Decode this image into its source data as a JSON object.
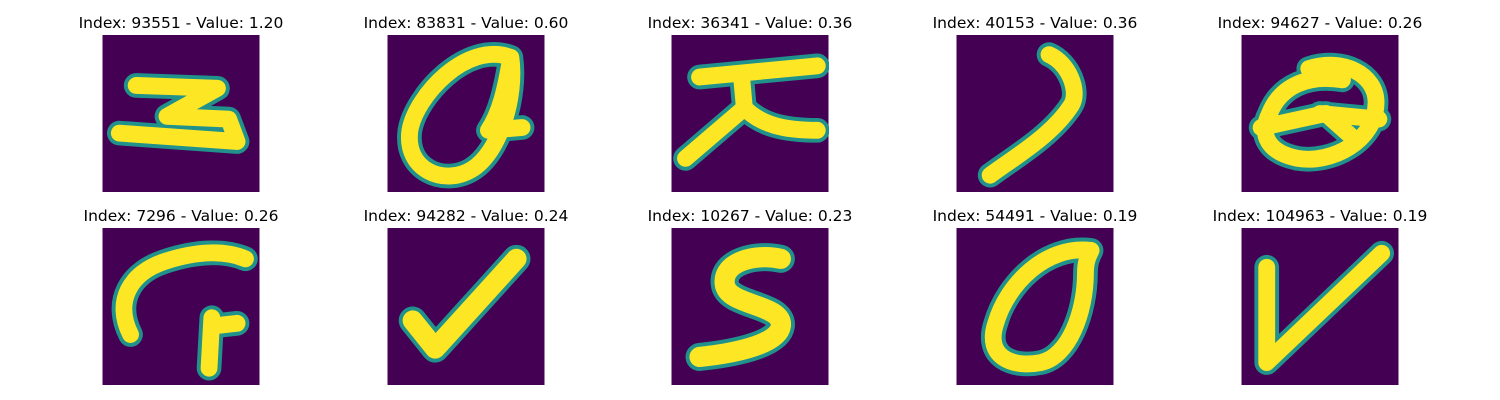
{
  "colors": {
    "background": "#440154",
    "mid": "#21918c",
    "stroke": "#fde725"
  },
  "chart_data": {
    "type": "image_grid",
    "colormap": "viridis",
    "panels": [
      {
        "title": "Index: 93551 - Value: 1.20",
        "glyph": "handwritten-3-rotated"
      },
      {
        "title": "Index: 83831 - Value: 0.60",
        "glyph": "handwritten-q"
      },
      {
        "title": "Index: 36341 - Value: 0.36",
        "glyph": "handwritten-x-bar"
      },
      {
        "title": "Index: 40153 - Value: 0.36",
        "glyph": "handwritten-curve"
      },
      {
        "title": "Index: 94627 - Value: 0.26",
        "glyph": "handwritten-theta"
      },
      {
        "title": "Index: 7296 - Value: 0.26",
        "glyph": "handwritten-arc-stroke"
      },
      {
        "title": "Index: 94282 - Value: 0.24",
        "glyph": "handwritten-check"
      },
      {
        "title": "Index: 10267 - Value: 0.23",
        "glyph": "handwritten-s"
      },
      {
        "title": "Index: 54491 - Value: 0.19",
        "glyph": "handwritten-0"
      },
      {
        "title": "Index: 104963 - Value: 0.19",
        "glyph": "handwritten-v"
      }
    ]
  }
}
